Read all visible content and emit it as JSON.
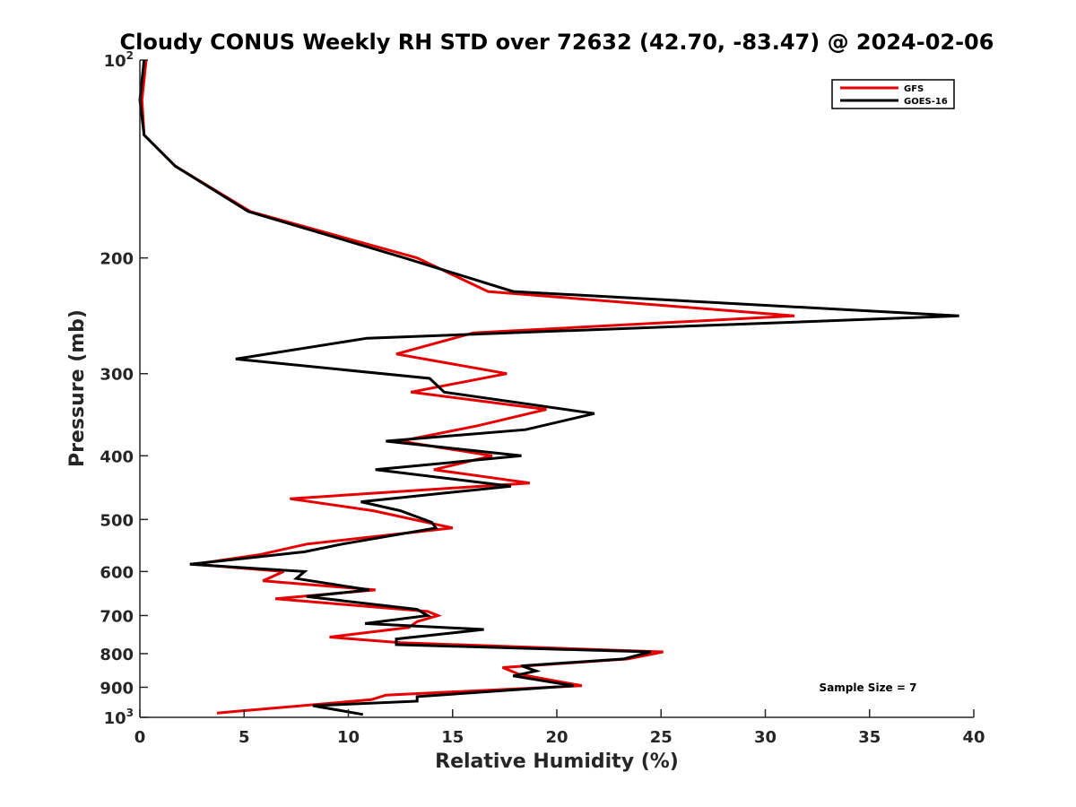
{
  "chart_data": {
    "type": "line",
    "title": "Cloudy CONUS Weekly RH STD over 72632 (42.70, -83.47) @ 2024-02-06",
    "xlabel": "Relative Humidity (%)",
    "ylabel": "Pressure (mb)",
    "xlim": [
      0,
      40
    ],
    "ylim": [
      100,
      1000
    ],
    "y_scale": "log",
    "y_reversed": true,
    "x_ticks": [
      0,
      5,
      10,
      15,
      20,
      25,
      30,
      35,
      40
    ],
    "y_ticks": [
      {
        "value": 100,
        "base": "10",
        "exp": "2"
      },
      {
        "value": 200,
        "label": "200"
      },
      {
        "value": 300,
        "label": "300"
      },
      {
        "value": 400,
        "label": "400"
      },
      {
        "value": 500,
        "label": "500"
      },
      {
        "value": 600,
        "label": "600"
      },
      {
        "value": 700,
        "label": "700"
      },
      {
        "value": 800,
        "label": "800"
      },
      {
        "value": 900,
        "label": "900"
      },
      {
        "value": 1000,
        "base": "10",
        "exp": "3"
      }
    ],
    "grid": false,
    "legend_position": "top-right",
    "annotation": "Sample Size = 7",
    "series": [
      {
        "name": "GFS",
        "color": "#e60000",
        "points": [
          [
            0.3,
            100
          ],
          [
            0.1,
            115
          ],
          [
            0.2,
            130
          ],
          [
            1.7,
            145
          ],
          [
            5.3,
            170
          ],
          [
            13.3,
            200
          ],
          [
            16.7,
            225
          ],
          [
            31.4,
            245
          ],
          [
            16.0,
            260
          ],
          [
            12.3,
            280
          ],
          [
            17.6,
            300
          ],
          [
            13.0,
            320
          ],
          [
            19.5,
            340
          ],
          [
            16.2,
            360
          ],
          [
            12.5,
            380
          ],
          [
            16.9,
            400
          ],
          [
            14.1,
            420
          ],
          [
            18.7,
            440
          ],
          [
            7.2,
            465
          ],
          [
            11.2,
            485
          ],
          [
            15.0,
            515
          ],
          [
            8.0,
            545
          ],
          [
            5.8,
            565
          ],
          [
            2.6,
            585
          ],
          [
            6.9,
            600
          ],
          [
            5.9,
            620
          ],
          [
            11.3,
            640
          ],
          [
            6.5,
            660
          ],
          [
            13.8,
            690
          ],
          [
            14.3,
            700
          ],
          [
            13.3,
            715
          ],
          [
            12.9,
            730
          ],
          [
            9.1,
            755
          ],
          [
            12.5,
            770
          ],
          [
            25.1,
            795
          ],
          [
            23.4,
            815
          ],
          [
            17.4,
            840
          ],
          [
            18.2,
            860
          ],
          [
            21.2,
            895
          ],
          [
            11.8,
            925
          ],
          [
            11.1,
            940
          ],
          [
            3.7,
            985
          ]
        ]
      },
      {
        "name": "GOES-16",
        "color": "#000000",
        "points": [
          [
            0.2,
            100
          ],
          [
            0.0,
            115
          ],
          [
            0.2,
            130
          ],
          [
            1.7,
            145
          ],
          [
            5.2,
            170
          ],
          [
            12.7,
            200
          ],
          [
            17.9,
            225
          ],
          [
            39.3,
            245
          ],
          [
            10.9,
            265
          ],
          [
            4.6,
            285
          ],
          [
            13.9,
            305
          ],
          [
            14.6,
            320
          ],
          [
            21.8,
            345
          ],
          [
            18.5,
            365
          ],
          [
            11.8,
            380
          ],
          [
            18.3,
            400
          ],
          [
            11.3,
            420
          ],
          [
            17.8,
            445
          ],
          [
            10.6,
            470
          ],
          [
            12.5,
            485
          ],
          [
            14.0,
            505
          ],
          [
            14.2,
            515
          ],
          [
            9.7,
            545
          ],
          [
            7.9,
            560
          ],
          [
            2.4,
            585
          ],
          [
            7.9,
            600
          ],
          [
            7.5,
            615
          ],
          [
            11.0,
            640
          ],
          [
            8.0,
            655
          ],
          [
            13.3,
            685
          ],
          [
            13.8,
            700
          ],
          [
            10.8,
            720
          ],
          [
            16.5,
            735
          ],
          [
            12.3,
            760
          ],
          [
            12.3,
            775
          ],
          [
            24.5,
            795
          ],
          [
            23.2,
            815
          ],
          [
            18.3,
            835
          ],
          [
            19.0,
            850
          ],
          [
            17.9,
            865
          ],
          [
            20.8,
            895
          ],
          [
            13.3,
            930
          ],
          [
            13.3,
            945
          ],
          [
            8.3,
            960
          ],
          [
            10.7,
            990
          ]
        ]
      }
    ]
  }
}
